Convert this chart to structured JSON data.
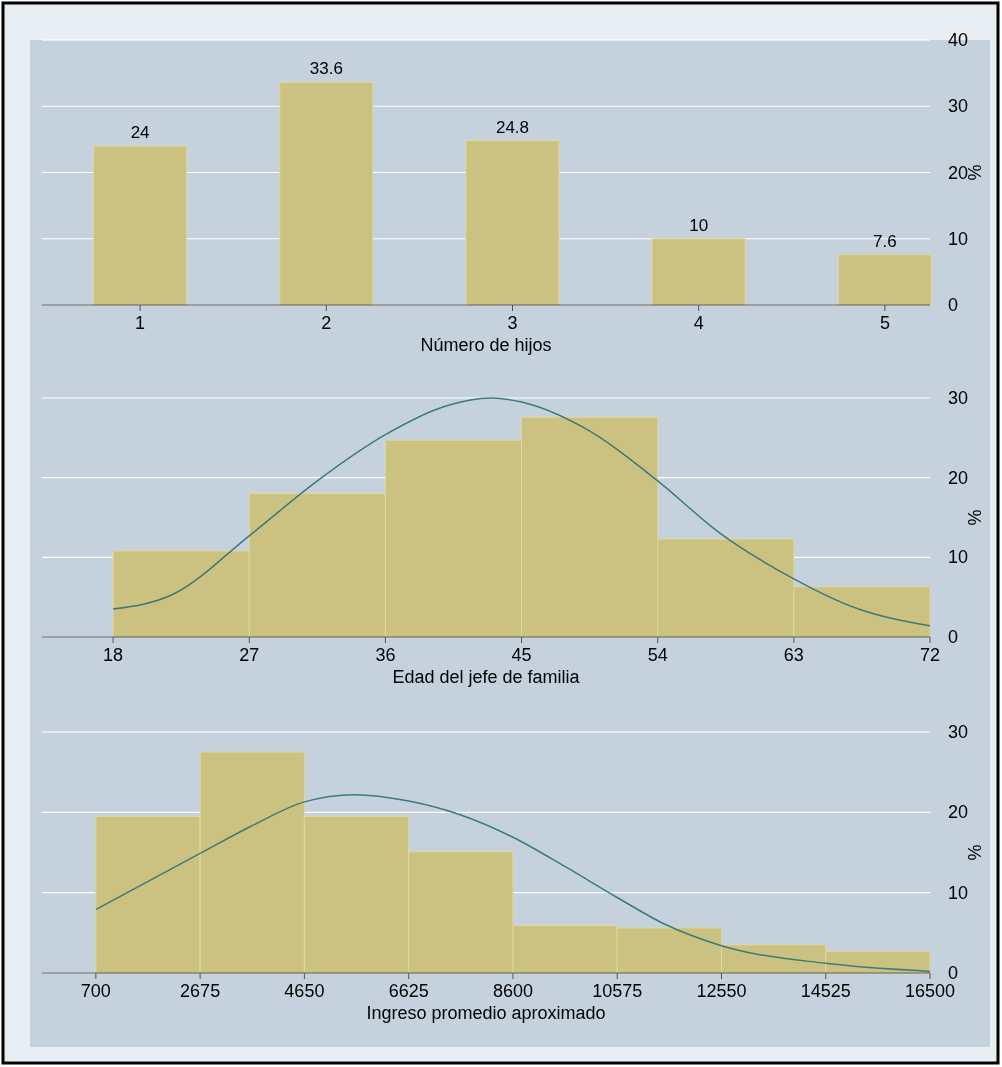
{
  "chart_data": [
    {
      "type": "bar",
      "categories": [
        "1",
        "2",
        "3",
        "4",
        "5"
      ],
      "values": [
        24,
        33.6,
        24.8,
        10,
        7.6
      ],
      "color": "#cbc281",
      "data_labels": true,
      "xlabel": "Número de hijos",
      "ylabel": "%",
      "ylim": [
        0,
        40
      ],
      "yticks": [
        0,
        10,
        20,
        30,
        40
      ],
      "grid": "y"
    },
    {
      "type": "histogram",
      "bins": [
        18,
        27,
        36,
        45,
        54,
        63,
        72
      ],
      "values": [
        10.8,
        18,
        24.7,
        27.6,
        12.3,
        6.3
      ],
      "color": "#cbc281",
      "xlabel": "Edad del jefe de familia",
      "ylabel": "%",
      "xlim": [
        13.3,
        72
      ],
      "xticks": [
        18,
        27,
        36,
        45,
        54,
        63,
        72
      ],
      "ylim": [
        0,
        30
      ],
      "yticks": [
        0,
        10,
        20,
        30
      ],
      "grid": "y",
      "series": [
        {
          "type": "line",
          "color": "#3d7a7a",
          "x": [
            18,
            22,
            27,
            31.5,
            36,
            40,
            43,
            45,
            49,
            54,
            58,
            63,
            67,
            72
          ],
          "values": [
            3.5,
            5.4,
            12.7,
            19.6,
            25.4,
            29,
            30,
            29.5,
            26.4,
            19.6,
            13.2,
            7.3,
            3.7,
            1.4
          ]
        }
      ]
    },
    {
      "type": "histogram",
      "bins": [
        700,
        2675,
        4650,
        6625,
        8600,
        10575,
        12550,
        14525,
        16500
      ],
      "values": [
        19.5,
        27.5,
        19.5,
        15.1,
        5.9,
        5.6,
        3.5,
        2.7
      ],
      "color": "#cbc281",
      "xlabel": "Ingreso promedio aproximado",
      "ylabel": "%",
      "xlim": [
        -320,
        16500
      ],
      "xticks": [
        700,
        2675,
        4650,
        6625,
        8600,
        10575,
        12550,
        14525,
        16500
      ],
      "ylim": [
        0,
        30
      ],
      "yticks": [
        0,
        10,
        20,
        30
      ],
      "grid": "y",
      "series": [
        {
          "type": "line",
          "color": "#3d7a7a",
          "x": [
            700,
            2675,
            3650,
            4650,
            5600,
            6625,
            7600,
            8600,
            9600,
            10575,
            11500,
            12550,
            14525,
            16500
          ],
          "values": [
            7.9,
            14.9,
            18.3,
            21.3,
            22.2,
            21.4,
            19.7,
            16.9,
            13.2,
            9.4,
            6,
            3.4,
            1.2,
            0.2
          ]
        }
      ]
    }
  ]
}
